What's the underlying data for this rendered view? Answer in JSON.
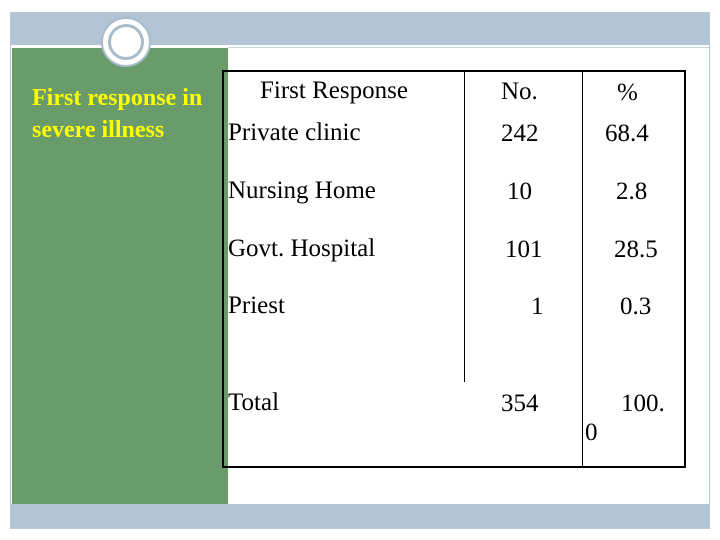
{
  "side_title": "First response in severe illness",
  "table": {
    "headers": [
      "First Response",
      "No.",
      "%"
    ],
    "rows": [
      {
        "label": "Private clinic",
        "no": "242",
        "pct": "68.4"
      },
      {
        "label": "Nursing Home",
        "no": "10",
        "pct": "2.8"
      },
      {
        "label": "Govt. Hospital",
        "no": "101",
        "pct": "28.5"
      },
      {
        "label": "Priest",
        "no": "1",
        "pct": "0.3"
      },
      {
        "label": "Total",
        "no": "354",
        "pct": "100.",
        "pct_wrap": "0"
      }
    ]
  },
  "colors": {
    "panel_green": "#699b6b",
    "title_yellow": "#ffff00",
    "band_blue": "#b3c5d4"
  }
}
